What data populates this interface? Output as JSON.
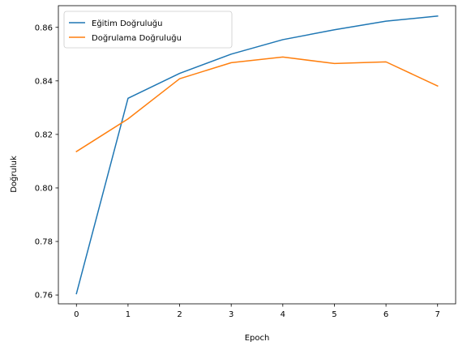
{
  "chart_data": {
    "type": "line",
    "x": [
      0,
      1,
      2,
      3,
      4,
      5,
      6,
      7
    ],
    "series": [
      {
        "name": "Eğitim Doğruluğu",
        "color": "#1f77b4",
        "values": [
          0.7605,
          0.8335,
          0.8428,
          0.85,
          0.8554,
          0.8591,
          0.8623,
          0.8642
        ]
      },
      {
        "name": "Doğrulama Doğruluğu",
        "color": "#ff7f0e",
        "values": [
          0.8136,
          0.8258,
          0.8408,
          0.8468,
          0.8489,
          0.8465,
          0.8471,
          0.8381
        ]
      }
    ],
    "xlabel": "Epoch",
    "ylabel": "Doğruluk",
    "xlim": [
      -0.35,
      7.35
    ],
    "ylim": [
      0.7567,
      0.8681
    ],
    "xticks": [
      0,
      1,
      2,
      3,
      4,
      5,
      6,
      7
    ],
    "yticks": [
      0.76,
      0.78,
      0.8,
      0.82,
      0.84,
      0.86
    ],
    "ytick_labels": [
      "0.76",
      "0.78",
      "0.80",
      "0.82",
      "0.84",
      "0.86"
    ],
    "legend_position": "top-left",
    "grid": false
  }
}
